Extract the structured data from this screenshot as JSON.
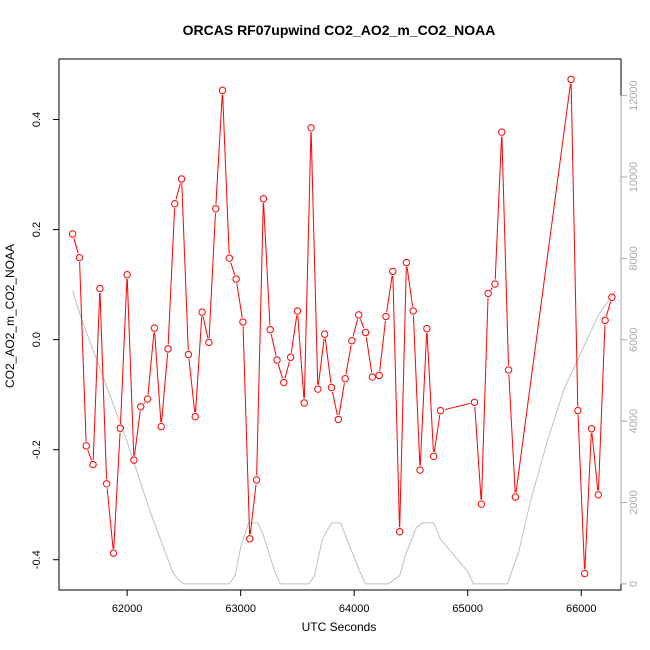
{
  "chart_data": {
    "type": "line",
    "title": "ORCAS RF07upwind CO2_AO2_m_CO2_NOAA",
    "xlabel": "UTC Seconds",
    "ylabel": "CO2_AO2_m_CO2_NOAA",
    "xlim": [
      61400,
      66350
    ],
    "ylim": [
      -0.455,
      0.51
    ],
    "y2lim": [
      -150,
      12900
    ],
    "x_ticks": [
      62000,
      63000,
      64000,
      65000,
      66000
    ],
    "y_ticks": [
      -0.4,
      -0.2,
      0.0,
      0.2,
      0.4
    ],
    "y_tick_labels": [
      "-0.4",
      "-0.2",
      "0.0",
      "0.2",
      "0.4"
    ],
    "y2_ticks": [
      0,
      2000,
      4000,
      6000,
      8000,
      10000,
      12000
    ],
    "grid": false,
    "series": [
      {
        "color": "#ff0000",
        "marker": "circle",
        "points": [
          [
            61520,
            0.192
          ],
          [
            61580,
            0.149
          ],
          [
            61640,
            -0.193
          ],
          [
            61700,
            -0.227
          ],
          [
            61760,
            0.093
          ],
          [
            61820,
            -0.262
          ],
          [
            61880,
            -0.388
          ],
          [
            61940,
            -0.161
          ],
          [
            62000,
            0.118
          ],
          [
            62060,
            -0.219
          ],
          [
            62120,
            -0.122
          ],
          [
            62180,
            -0.108
          ],
          [
            62240,
            0.021
          ],
          [
            62300,
            -0.158
          ],
          [
            62360,
            -0.017
          ],
          [
            62420,
            0.247
          ],
          [
            62480,
            0.292
          ],
          [
            62540,
            -0.027
          ],
          [
            62600,
            -0.14
          ],
          [
            62660,
            0.05
          ],
          [
            62720,
            -0.005
          ],
          [
            62780,
            0.238
          ],
          [
            62840,
            0.453
          ],
          [
            62900,
            0.148
          ],
          [
            62960,
            0.11
          ],
          [
            63020,
            0.032
          ],
          [
            63080,
            -0.362
          ],
          [
            63140,
            -0.255
          ],
          [
            63200,
            0.256
          ],
          [
            63260,
            0.018
          ],
          [
            63320,
            -0.037
          ],
          [
            63380,
            -0.078
          ],
          [
            63440,
            -0.032
          ],
          [
            63500,
            0.052
          ],
          [
            63560,
            -0.115
          ],
          [
            63620,
            0.385
          ],
          [
            63680,
            -0.09
          ],
          [
            63740,
            0.01
          ],
          [
            63800,
            -0.087
          ],
          [
            63860,
            -0.145
          ],
          [
            63920,
            -0.071
          ],
          [
            63980,
            -0.002
          ],
          [
            64040,
            0.045
          ],
          [
            64100,
            0.013
          ],
          [
            64160,
            -0.068
          ],
          [
            64220,
            -0.065
          ],
          [
            64280,
            0.042
          ],
          [
            64340,
            0.124
          ],
          [
            64400,
            -0.349
          ],
          [
            64460,
            0.14
          ],
          [
            64520,
            0.052
          ],
          [
            64580,
            -0.237
          ],
          [
            64640,
            0.02
          ],
          [
            64700,
            -0.212
          ],
          [
            64760,
            -0.129
          ],
          [
            65060,
            -0.114
          ],
          [
            65120,
            -0.299
          ],
          [
            65180,
            0.084
          ],
          [
            65240,
            0.101
          ],
          [
            65300,
            0.377
          ],
          [
            65360,
            -0.055
          ],
          [
            65420,
            -0.286
          ],
          [
            65910,
            0.473
          ],
          [
            65970,
            -0.129
          ],
          [
            66030,
            -0.425
          ],
          [
            66090,
            -0.162
          ],
          [
            66150,
            -0.282
          ],
          [
            66210,
            0.035
          ],
          [
            66270,
            0.077
          ]
        ]
      },
      {
        "color": "#c0c0c0",
        "axis": "right",
        "points": [
          [
            61520,
            7200
          ],
          [
            61600,
            6500
          ],
          [
            61800,
            5000
          ],
          [
            62000,
            3500
          ],
          [
            62200,
            1800
          ],
          [
            62400,
            300
          ],
          [
            62450,
            100
          ],
          [
            62500,
            0
          ],
          [
            62700,
            0
          ],
          [
            62900,
            0
          ],
          [
            62950,
            200
          ],
          [
            63000,
            900
          ],
          [
            63070,
            1500
          ],
          [
            63150,
            1500
          ],
          [
            63200,
            1200
          ],
          [
            63300,
            300
          ],
          [
            63350,
            0
          ],
          [
            63450,
            0
          ],
          [
            63600,
            0
          ],
          [
            63650,
            200
          ],
          [
            63720,
            1100
          ],
          [
            63800,
            1500
          ],
          [
            63880,
            1500
          ],
          [
            63950,
            1000
          ],
          [
            64050,
            300
          ],
          [
            64100,
            0
          ],
          [
            64300,
            0
          ],
          [
            64350,
            100
          ],
          [
            64400,
            200
          ],
          [
            64450,
            700
          ],
          [
            64550,
            1400
          ],
          [
            64600,
            1500
          ],
          [
            64700,
            1500
          ],
          [
            64760,
            1100
          ],
          [
            64850,
            800
          ],
          [
            65000,
            300
          ],
          [
            65050,
            0
          ],
          [
            65350,
            0
          ],
          [
            65450,
            800
          ],
          [
            65550,
            2000
          ],
          [
            65700,
            3500
          ],
          [
            65850,
            4800
          ],
          [
            66000,
            5700
          ],
          [
            66150,
            6600
          ],
          [
            66300,
            7200
          ]
        ]
      }
    ]
  }
}
